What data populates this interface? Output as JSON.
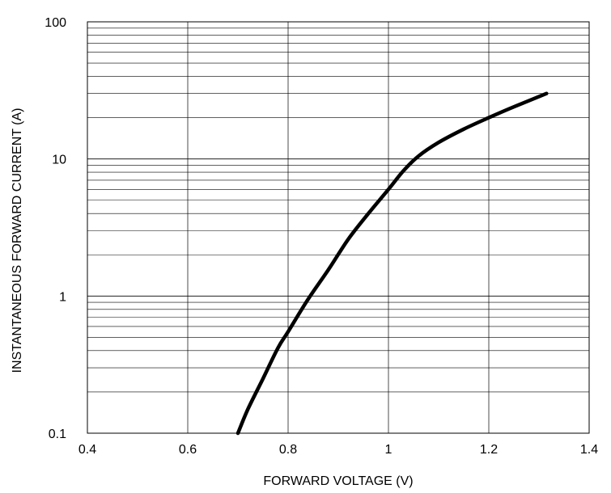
{
  "chart_data": {
    "type": "line",
    "xlabel": "FORWARD VOLTAGE (V)",
    "ylabel": "INSTANTANEOUS FORWARD CURRENT (A)",
    "xlim": [
      0.4,
      1.4
    ],
    "ylim": [
      0.1,
      100
    ],
    "yscale": "log",
    "grid": true,
    "x_ticks": [
      "0.4",
      "0.6",
      "0.8",
      "1",
      "1.2",
      "1.4"
    ],
    "y_ticks": [
      "0.1",
      "1",
      "10",
      "100"
    ],
    "series": [
      {
        "color": "#000000",
        "x": [
          0.7,
          0.72,
          0.75,
          0.78,
          0.8,
          0.84,
          0.88,
          0.92,
          0.96,
          1.0,
          1.03,
          1.06,
          1.1,
          1.15,
          1.2,
          1.25,
          1.315
        ],
        "y": [
          0.1,
          0.15,
          0.25,
          0.42,
          0.55,
          0.95,
          1.55,
          2.6,
          4.0,
          6.0,
          8.2,
          10.5,
          13.2,
          16.5,
          20.0,
          24.0,
          30.0
        ]
      }
    ]
  }
}
